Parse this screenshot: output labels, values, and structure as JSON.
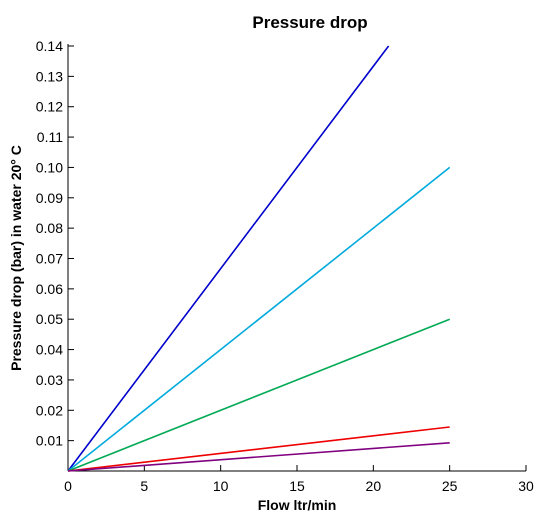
{
  "chart_data": {
    "type": "line",
    "title": "Pressure drop",
    "xlabel": "Flow ltr/min",
    "ylabel": "Pressure drop (bar) in water 20° C",
    "xlim": [
      0,
      30
    ],
    "ylim": [
      0,
      0.14
    ],
    "x_ticks": [
      "0",
      "5",
      "10",
      "15",
      "20",
      "25",
      "30"
    ],
    "y_ticks": [
      "0.01",
      "0.02",
      "0.03",
      "0.04",
      "0.05",
      "0.06",
      "0.07",
      "0.08",
      "0.09",
      "0.10",
      "0.11",
      "0.12",
      "0.13",
      "0.14"
    ],
    "grid": false,
    "legend": "none",
    "series": [
      {
        "color": "#0000cc",
        "x": [
          0,
          21
        ],
        "y": [
          0,
          0.14
        ]
      },
      {
        "color": "#00aadd",
        "x": [
          0,
          25
        ],
        "y": [
          0,
          0.1
        ]
      },
      {
        "color": "#00aa55",
        "x": [
          0,
          25
        ],
        "y": [
          0,
          0.05
        ]
      },
      {
        "color": "#ee0000",
        "x": [
          0,
          25
        ],
        "y": [
          0,
          0.0145
        ]
      },
      {
        "color": "#800080",
        "x": [
          0,
          25
        ],
        "y": [
          0,
          0.0093
        ]
      }
    ]
  }
}
